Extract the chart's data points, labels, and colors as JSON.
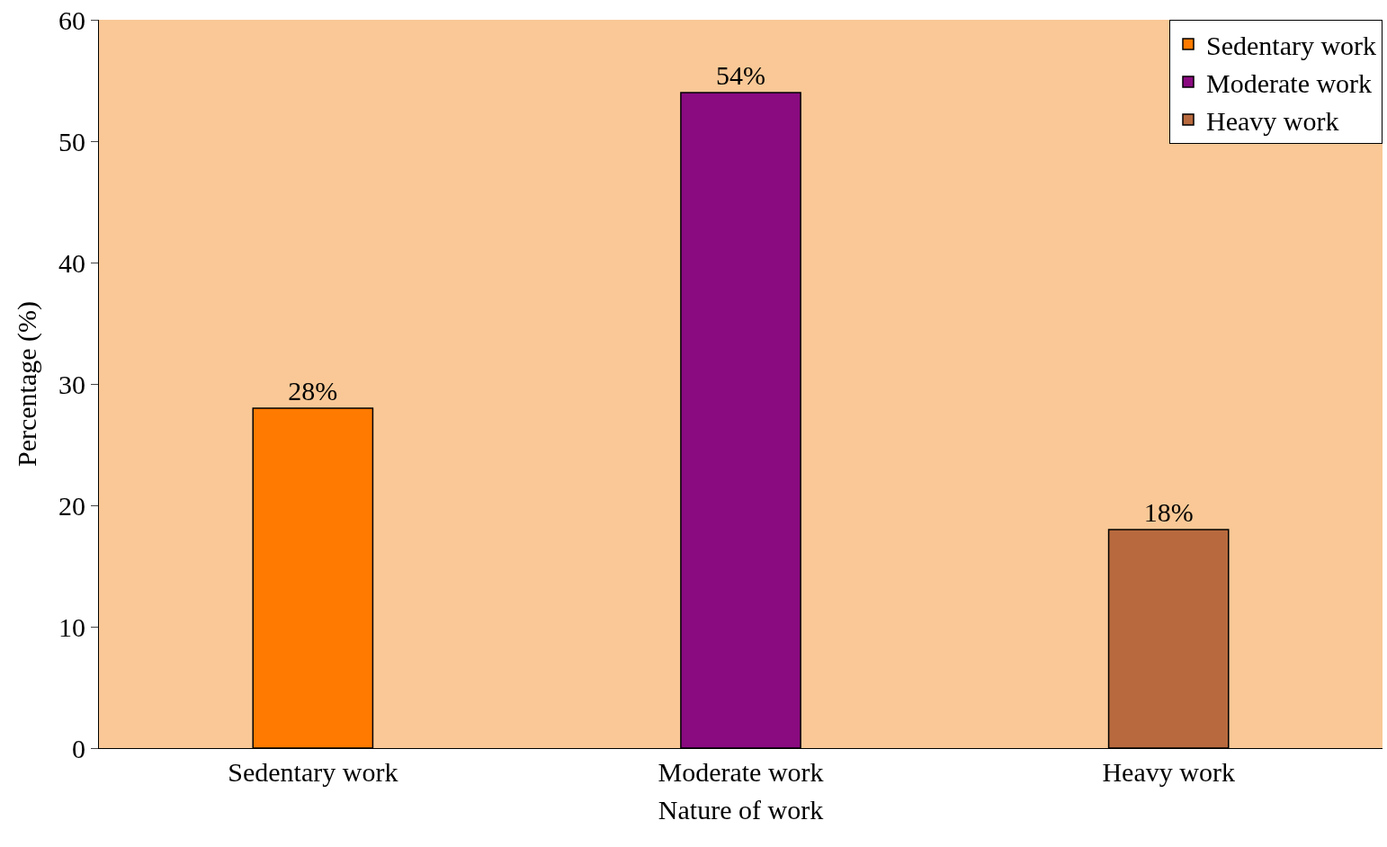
{
  "chart_data": {
    "type": "bar",
    "xlabel": "Nature of work",
    "ylabel": "Percentage (%)",
    "categories": [
      "Sedentary work",
      "Moderate work",
      "Heavy work"
    ],
    "series": [
      {
        "name": "Sedentary work",
        "color": "#ff7a00",
        "values": [
          28,
          null,
          null
        ],
        "value_labels": [
          "28%",
          null,
          null
        ]
      },
      {
        "name": "Moderate work",
        "color": "#8a0a80",
        "values": [
          null,
          54,
          null
        ],
        "value_labels": [
          null,
          "54%",
          null
        ]
      },
      {
        "name": "Heavy work",
        "color": "#b86a3e",
        "values": [
          null,
          null,
          18
        ],
        "value_labels": [
          null,
          null,
          "18%"
        ]
      }
    ],
    "ylim": [
      0,
      60
    ],
    "yticks": [
      0,
      10,
      20,
      30,
      40,
      50,
      60
    ],
    "grid": false,
    "legend": "top right"
  }
}
